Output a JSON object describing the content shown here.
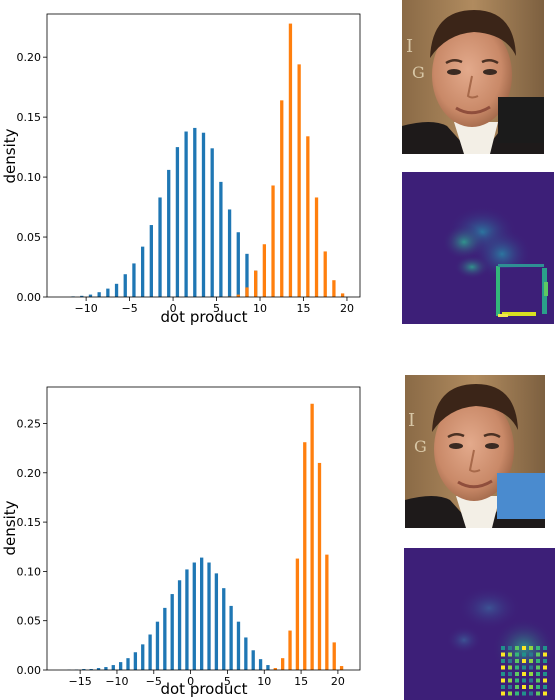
{
  "colors": {
    "clean": "#1f77b4",
    "occluded": "#ff7f0e",
    "heat_background": "#3d1f78",
    "occluder_top": "#1b1b1b",
    "occluder_bottom": "#4a8bcf"
  },
  "chart_data": [
    {
      "type": "bar",
      "xlabel": "dot product",
      "ylabel": "density",
      "xlim": [
        -14.5,
        21.5
      ],
      "ylim": [
        0,
        0.236
      ],
      "xticks": [
        -10,
        -5,
        0,
        5,
        10,
        15,
        20
      ],
      "yticks": [
        0.0,
        0.05,
        0.1,
        0.15,
        0.2
      ],
      "ytick_labels": [
        "0.00",
        "0.05",
        "0.10",
        "0.15",
        "0.20"
      ],
      "grid": false,
      "bar_width": 0.38,
      "series": [
        {
          "color": "#1f77b4",
          "x": [
            -11.5,
            -10.5,
            -9.5,
            -8.5,
            -7.5,
            -6.5,
            -5.5,
            -4.5,
            -3.5,
            -2.5,
            -1.5,
            -0.5,
            0.5,
            1.5,
            2.5,
            3.5,
            4.5,
            5.5,
            6.5,
            7.5,
            8.5,
            9.5
          ],
          "values": [
            0.0005,
            0.001,
            0.002,
            0.004,
            0.007,
            0.011,
            0.019,
            0.028,
            0.042,
            0.06,
            0.083,
            0.106,
            0.125,
            0.138,
            0.141,
            0.137,
            0.124,
            0.096,
            0.073,
            0.054,
            0.036,
            0.022
          ]
        },
        {
          "color": "#ff7f0e",
          "x": [
            6.5,
            7.5,
            8.5,
            9.5,
            10.5,
            11.5,
            12.5,
            13.5,
            14.5,
            15.5,
            16.5,
            17.5,
            18.5,
            19.5
          ],
          "values": [
            0.0005,
            0.002,
            0.008,
            0.022,
            0.044,
            0.093,
            0.164,
            0.228,
            0.194,
            0.134,
            0.083,
            0.038,
            0.014,
            0.003
          ]
        }
      ]
    },
    {
      "type": "bar",
      "xlabel": "dot product",
      "ylabel": "density",
      "xlim": [
        -19.5,
        23.0
      ],
      "ylim": [
        0,
        0.287
      ],
      "xticks": [
        -15,
        -10,
        -5,
        0,
        5,
        10,
        15,
        20
      ],
      "yticks": [
        0.0,
        0.05,
        0.1,
        0.15,
        0.2,
        0.25
      ],
      "ytick_labels": [
        "0.00",
        "0.05",
        "0.10",
        "0.15",
        "0.20",
        "0.25"
      ],
      "grid": false,
      "bar_width": 0.45,
      "series": [
        {
          "color": "#1f77b4",
          "x": [
            -16.5,
            -15.5,
            -14.5,
            -13.5,
            -12.5,
            -11.5,
            -10.5,
            -9.5,
            -8.5,
            -7.5,
            -6.5,
            -5.5,
            -4.5,
            -3.5,
            -2.5,
            -1.5,
            -0.5,
            0.5,
            1.5,
            2.5,
            3.5,
            4.5,
            5.5,
            6.5,
            7.5,
            8.5,
            9.5,
            10.5
          ],
          "values": [
            0.0003,
            0.0005,
            0.001,
            0.001,
            0.002,
            0.003,
            0.005,
            0.008,
            0.012,
            0.018,
            0.026,
            0.036,
            0.049,
            0.063,
            0.077,
            0.091,
            0.102,
            0.109,
            0.114,
            0.109,
            0.098,
            0.083,
            0.065,
            0.049,
            0.033,
            0.02,
            0.011,
            0.005
          ]
        },
        {
          "color": "#ff7f0e",
          "x": [
            11.5,
            12.5,
            13.5,
            14.5,
            15.5,
            16.5,
            17.5,
            18.5,
            19.5,
            20.5
          ],
          "values": [
            0.002,
            0.012,
            0.04,
            0.113,
            0.231,
            0.27,
            0.21,
            0.117,
            0.028,
            0.004
          ]
        }
      ]
    }
  ]
}
